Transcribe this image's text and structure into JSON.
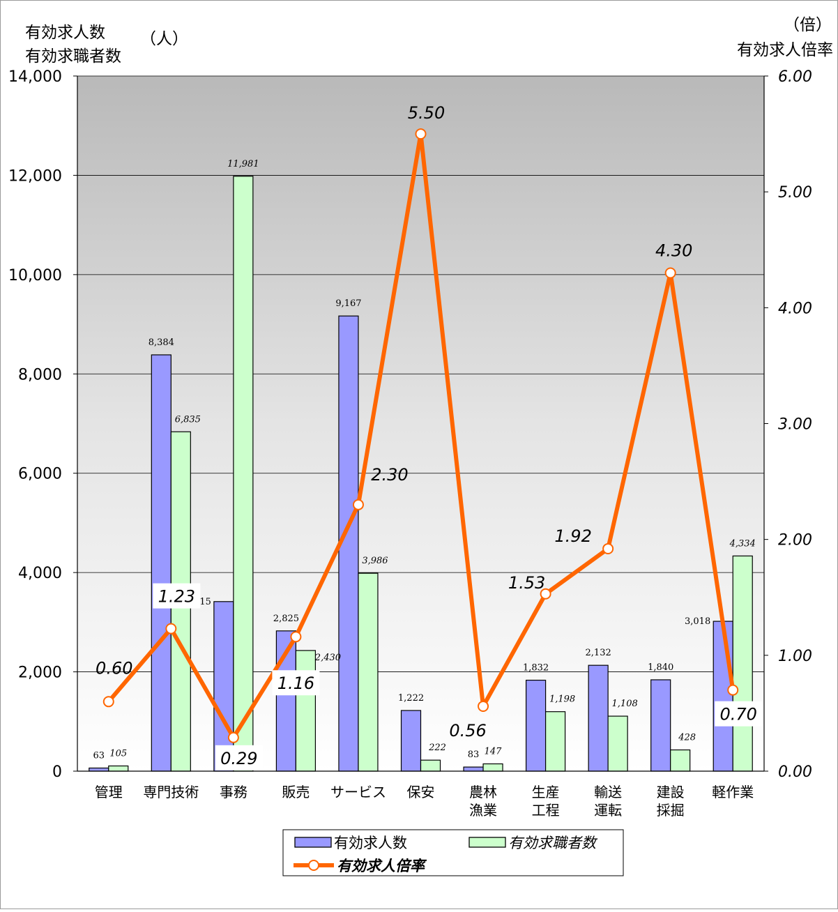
{
  "chart_data": {
    "type": "bar",
    "categories": [
      [
        "管理"
      ],
      [
        "専門技術"
      ],
      [
        "事務"
      ],
      [
        "販売"
      ],
      [
        "サービス"
      ],
      [
        "保安"
      ],
      [
        "農林",
        "漁業"
      ],
      [
        "生産",
        "工程"
      ],
      [
        "輸送",
        "運転"
      ],
      [
        "建設",
        "採掘"
      ],
      [
        "軽作業"
      ]
    ],
    "series": [
      {
        "name": "有効求人数",
        "type": "bar",
        "axis": "left",
        "color": "#9999ff",
        "values": [
          63,
          8384,
          3415,
          2825,
          9167,
          1222,
          83,
          1832,
          2132,
          1840,
          3018
        ],
        "labels": [
          "63",
          "8,384",
          "3,415",
          "2,825",
          "9,167",
          "1,222",
          "83",
          "1,832",
          "2,132",
          "1,840",
          "3,018"
        ]
      },
      {
        "name": "有効求職者数",
        "type": "bar",
        "axis": "left",
        "color": "#ccffcc",
        "values": [
          105,
          6835,
          11981,
          2430,
          3986,
          222,
          147,
          1198,
          1108,
          428,
          4334
        ],
        "labels": [
          "105",
          "6,835",
          "11,981",
          "2,430",
          "3,986",
          "222",
          "147",
          "1,198",
          "1,108",
          "428",
          "4,334"
        ]
      },
      {
        "name": "有効求人倍率",
        "type": "line",
        "axis": "right",
        "color": "#ff6600",
        "values": [
          0.6,
          1.23,
          0.29,
          1.16,
          2.3,
          5.5,
          0.56,
          1.53,
          1.92,
          4.3,
          0.7
        ],
        "labels": [
          "0.60",
          "1.23",
          "0.29",
          "1.16",
          "2.30",
          "5.50",
          "0.56",
          "1.53",
          "1.92",
          "4.30",
          "0.70"
        ]
      }
    ],
    "y_left": {
      "title_lines": [
        "有効求人数",
        "有効求職者数"
      ],
      "unit": "（人）",
      "range": [
        0,
        14000
      ],
      "ticks": [
        "0",
        "2,000",
        "4,000",
        "6,000",
        "8,000",
        "10,000",
        "12,000",
        "14,000"
      ]
    },
    "y_right": {
      "title_lines": [
        "（倍）",
        "有効求人倍率"
      ],
      "range": [
        0,
        6
      ],
      "ticks": [
        "0.00",
        "1.00",
        "2.00",
        "3.00",
        "4.00",
        "5.00",
        "6.00"
      ]
    },
    "grid": true,
    "legend": {
      "position": "bottom-center",
      "items": [
        "有効求人数",
        "有効求職者数",
        "有効求人倍率"
      ]
    },
    "colors": {
      "bar1_stroke": "#000000",
      "line": "#ff6600",
      "marker_fill": "#ffffff",
      "plot_bg_top": "#bcbcbc",
      "plot_bg_bottom": "#ffffff"
    }
  }
}
